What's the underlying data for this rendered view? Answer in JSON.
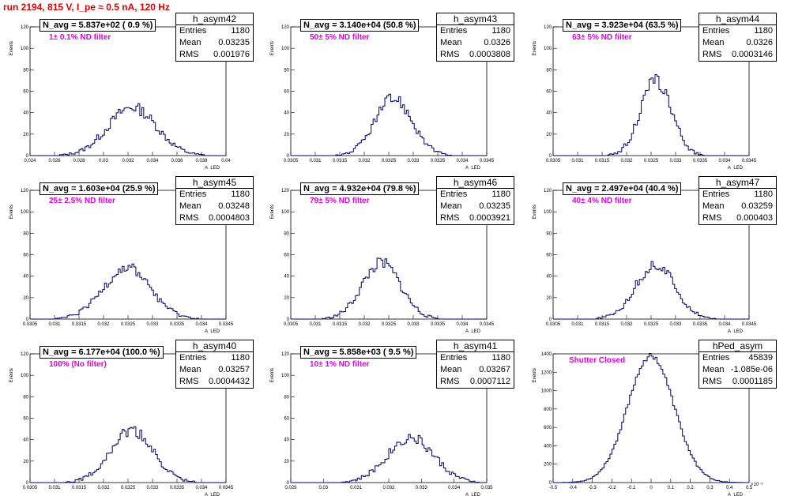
{
  "title": "run 2194,   815 V, I_pe ≈ 0.5 nA, 120 Hz",
  "chart_data": [
    {
      "type": "bar",
      "name": "h_asym42",
      "entries": "1180",
      "mean": "0.03235",
      "rms": "0.001976",
      "navg": "N_avg = 5.837e+02 ( 0.9 %)",
      "filter": "1± 0.1% ND filter",
      "xlim": [
        0.024,
        0.04
      ],
      "ylim": [
        0,
        120
      ],
      "xticks": [
        "0.024",
        "0.026",
        "0.028",
        "0.03",
        "0.032",
        "0.034",
        "0.036",
        "0.038",
        "0.04"
      ],
      "yticks": [
        "0",
        "20",
        "40",
        "60",
        "80",
        "100",
        "120"
      ],
      "xlabel": "A_LED",
      "ylabel": "Events",
      "mu": 0.03235,
      "sigma": 0.001976,
      "peak": 45
    },
    {
      "type": "bar",
      "name": "h_asym43",
      "entries": "1180",
      "mean": "0.0326",
      "rms": "0.0003808",
      "navg": "N_avg = 3.140e+04 (50.8 %)",
      "filter": "50± 5% ND filter",
      "xlim": [
        0.0305,
        0.0345
      ],
      "ylim": [
        0,
        120
      ],
      "xticks": [
        "0.0305",
        "0.031",
        "0.0315",
        "0.032",
        "0.0325",
        "0.033",
        "0.0335",
        "0.034",
        "0.0345"
      ],
      "yticks": [
        "0",
        "20",
        "40",
        "60",
        "80",
        "100",
        "120"
      ],
      "xlabel": "A_LED",
      "ylabel": "Events",
      "mu": 0.0326,
      "sigma": 0.0003808,
      "peak": 53
    },
    {
      "type": "bar",
      "name": "h_asym44",
      "entries": "1180",
      "mean": "0.0326",
      "rms": "0.0003146",
      "navg": "N_avg = 3.923e+04 (63.5 %)",
      "filter": "63± 5% ND filter",
      "xlim": [
        0.0305,
        0.0345
      ],
      "ylim": [
        0,
        120
      ],
      "xticks": [
        "0.0305",
        "0.031",
        "0.0315",
        "0.032",
        "0.0325",
        "0.033",
        "0.0335",
        "0.034",
        "0.0345"
      ],
      "yticks": [
        "0",
        "20",
        "40",
        "60",
        "80",
        "100",
        "120"
      ],
      "xlabel": "A_LED",
      "ylabel": "Events",
      "mu": 0.0326,
      "sigma": 0.0003146,
      "peak": 70
    },
    {
      "type": "bar",
      "name": "h_asym45",
      "entries": "1180",
      "mean": "0.03248",
      "rms": "0.0004803",
      "navg": "N_avg = 1.603e+04 (25.9 %)",
      "filter": "25± 2.5% ND filter",
      "xlim": [
        0.0305,
        0.0345
      ],
      "ylim": [
        0,
        120
      ],
      "xticks": [
        "0.0305",
        "0.031",
        "0.0315",
        "0.032",
        "0.0325",
        "0.033",
        "0.0335",
        "0.034",
        "0.0345"
      ],
      "yticks": [
        "0",
        "20",
        "40",
        "60",
        "80",
        "100",
        "120"
      ],
      "xlabel": "A_LED",
      "ylabel": "Events",
      "mu": 0.03248,
      "sigma": 0.0004803,
      "peak": 48
    },
    {
      "type": "bar",
      "name": "h_asym46",
      "entries": "1180",
      "mean": "0.03235",
      "rms": "0.0003921",
      "navg": "N_avg = 4.932e+04 (79.8 %)",
      "filter": "79± 5% ND filter",
      "xlim": [
        0.0305,
        0.0345
      ],
      "ylim": [
        0,
        120
      ],
      "xticks": [
        "0.0305",
        "0.031",
        "0.0315",
        "0.032",
        "0.0325",
        "0.033",
        "0.0335",
        "0.034",
        "0.0345"
      ],
      "yticks": [
        "0",
        "20",
        "40",
        "60",
        "80",
        "100",
        "120"
      ],
      "xlabel": "A_LED",
      "ylabel": "Events",
      "mu": 0.03235,
      "sigma": 0.0003921,
      "peak": 52
    },
    {
      "type": "bar",
      "name": "h_asym47",
      "entries": "1180",
      "mean": "0.03259",
      "rms": "0.000403",
      "navg": "N_avg = 2.497e+04 (40.4 %)",
      "filter": "40± 4% ND filter",
      "xlim": [
        0.0305,
        0.0345
      ],
      "ylim": [
        0,
        120
      ],
      "xticks": [
        "0.0305",
        "0.031",
        "0.0315",
        "0.032",
        "0.0325",
        "0.033",
        "0.0335",
        "0.034",
        "0.0345"
      ],
      "yticks": [
        "0",
        "20",
        "40",
        "60",
        "80",
        "100",
        "120"
      ],
      "xlabel": "A_LED",
      "ylabel": "Events",
      "mu": 0.03259,
      "sigma": 0.000403,
      "peak": 50
    },
    {
      "type": "bar",
      "name": "h_asym40",
      "entries": "1180",
      "mean": "0.03257",
      "rms": "0.0004432",
      "navg": "N_avg = 6.177e+04 (100.0 %)",
      "filter": "100% (No filter)",
      "xlim": [
        0.0305,
        0.0345
      ],
      "ylim": [
        0,
        120
      ],
      "xticks": [
        "0.0305",
        "0.031",
        "0.0315",
        "0.032",
        "0.0325",
        "0.033",
        "0.0335",
        "0.034",
        "0.0345"
      ],
      "yticks": [
        "0",
        "20",
        "40",
        "60",
        "80",
        "100",
        "120"
      ],
      "xlabel": "A_LED",
      "ylabel": "Events",
      "mu": 0.03257,
      "sigma": 0.0004432,
      "peak": 48
    },
    {
      "type": "bar",
      "name": "h_asym41",
      "entries": "1180",
      "mean": "0.03267",
      "rms": "0.0007112",
      "navg": "N_avg = 5.858e+03 ( 9.5 %)",
      "filter": "10± 1% ND filter",
      "xlim": [
        0.029,
        0.035
      ],
      "ylim": [
        0,
        120
      ],
      "xticks": [
        "0.029",
        "0.03",
        "0.031",
        "0.032",
        "0.033",
        "0.034",
        "0.035"
      ],
      "yticks": [
        "0",
        "20",
        "40",
        "60",
        "80",
        "100",
        "120"
      ],
      "xlabel": "A_LED",
      "ylabel": "Events",
      "mu": 0.03267,
      "sigma": 0.0007112,
      "peak": 42
    },
    {
      "type": "bar",
      "name": "hPed_asym",
      "entries": "45839",
      "mean": "-1.085e-06",
      "rms": "0.0001185",
      "navg": "",
      "filter": "Shutter Closed",
      "xlim": [
        -0.5,
        0.5
      ],
      "ylim": [
        0,
        1400
      ],
      "xticks": [
        "-0.5",
        "-0.4",
        "-0.3",
        "-0.2",
        "-0.1",
        "0",
        "0.1",
        "0.2",
        "0.3",
        "0.4",
        "0.5"
      ],
      "yticks": [
        "0",
        "200",
        "400",
        "600",
        "800",
        "1000",
        "1200",
        "1400"
      ],
      "xlabel": "A_LED",
      "ylabel": "Events",
      "xexp": "×10⁻³",
      "mu": -0.001085,
      "sigma": 0.1185,
      "peak": 1380
    }
  ]
}
